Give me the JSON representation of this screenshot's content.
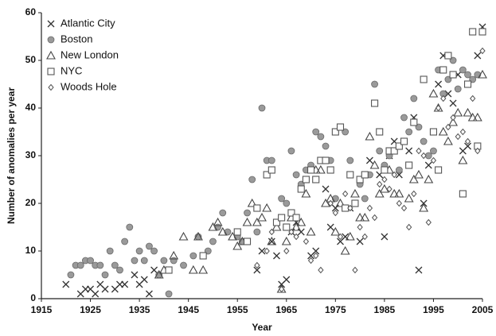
{
  "chart_data": {
    "type": "scatter",
    "xlabel": "Year",
    "ylabel": "Number of anomalies per year",
    "xlim": [
      1915,
      2005
    ],
    "xticks": [
      1915,
      1925,
      1935,
      1945,
      1955,
      1965,
      1975,
      1985,
      1995,
      2005
    ],
    "ylim": [
      0,
      60
    ],
    "yticks": [
      0,
      10,
      20,
      30,
      40,
      50,
      60
    ],
    "legend": "upper left",
    "series": [
      {
        "name": "Atlantic City",
        "marker": "x",
        "color": "#333333",
        "x": [
          1920,
          1923,
          1924,
          1925,
          1926,
          1927,
          1928,
          1930,
          1931,
          1932,
          1934,
          1935,
          1936,
          1937,
          1938,
          1959,
          1960,
          1962,
          1963,
          1964,
          1965,
          1966,
          1967,
          1968,
          1970,
          1971,
          1973,
          1974,
          1975,
          1976,
          1977,
          1978,
          1980,
          1982,
          1984,
          1985,
          1986,
          1987,
          1988,
          1990,
          1991,
          1992,
          1993,
          1994,
          1995,
          1996,
          1997,
          1998,
          1999,
          2000,
          2001,
          2002,
          2003,
          2004,
          2005
        ],
        "values": [
          3,
          1,
          2,
          2,
          1,
          3,
          2,
          2,
          3,
          3,
          5,
          3,
          4,
          1,
          6,
          6,
          10,
          12,
          9,
          3,
          4,
          14,
          16,
          14,
          9,
          10,
          23,
          15,
          19,
          12,
          13,
          19,
          12,
          29,
          26,
          13,
          30,
          33,
          26,
          31,
          38,
          6,
          20,
          28,
          35,
          45,
          51,
          43,
          41,
          47,
          31,
          32,
          56,
          51,
          57
        ]
      },
      {
        "name": "Boston",
        "marker": "circle",
        "color": "#9a9a9a",
        "x": [
          1921,
          1922,
          1923,
          1924,
          1925,
          1926,
          1927,
          1928,
          1929,
          1930,
          1931,
          1932,
          1933,
          1934,
          1935,
          1936,
          1937,
          1938,
          1939,
          1940,
          1941,
          1942,
          1944,
          1946,
          1947,
          1948,
          1949,
          1950,
          1951,
          1952,
          1953,
          1955,
          1956,
          1957,
          1958,
          1959,
          1960,
          1961,
          1962,
          1963,
          1964,
          1965,
          1966,
          1967,
          1968,
          1969,
          1970,
          1971,
          1972,
          1973,
          1974,
          1975,
          1976,
          1977,
          1978,
          1979,
          1980,
          1981,
          1982,
          1983,
          1984,
          1985,
          1986,
          1987,
          1988,
          1989,
          1990,
          1991,
          1992,
          1993,
          1994,
          1995,
          1996,
          1997,
          1998,
          1999,
          2000,
          2001,
          2002,
          2003,
          2004,
          2005
        ],
        "values": [
          5,
          7,
          7,
          8,
          8,
          7,
          7,
          5,
          10,
          7,
          6,
          12,
          15,
          8,
          10,
          8,
          11,
          10,
          5,
          8,
          1,
          8,
          7,
          9,
          13,
          9,
          10,
          12,
          15,
          18,
          14,
          13,
          12,
          18,
          25,
          14,
          40,
          29,
          29,
          16,
          21,
          20,
          31,
          26,
          24,
          27,
          28,
          35,
          34,
          32,
          29,
          21,
          36,
          35,
          29,
          20,
          24,
          21,
          26,
          45,
          31,
          28,
          30,
          31,
          27,
          38,
          35,
          42,
          36,
          33,
          30,
          31,
          48,
          43,
          46,
          50,
          44,
          48,
          47,
          46,
          47,
          56
        ]
      },
      {
        "name": "New London",
        "marker": "triangle",
        "color": "#444444",
        "x": [
          1939,
          1940,
          1942,
          1944,
          1946,
          1947,
          1948,
          1950,
          1951,
          1952,
          1954,
          1955,
          1956,
          1957,
          1958,
          1959,
          1960,
          1961,
          1962,
          1963,
          1964,
          1965,
          1966,
          1967,
          1968,
          1969,
          1970,
          1971,
          1972,
          1973,
          1974,
          1975,
          1976,
          1977,
          1978,
          1979,
          1980,
          1981,
          1982,
          1983,
          1984,
          1985,
          1986,
          1987,
          1988,
          1990,
          1991,
          1992,
          1993,
          1994,
          1995,
          1996,
          1997,
          1998,
          1999,
          2000,
          2001,
          2002,
          2003,
          2004,
          2005
        ],
        "values": [
          5,
          6,
          9,
          13,
          6,
          13,
          6,
          15,
          16,
          14,
          13,
          11,
          12,
          16,
          20,
          16,
          17,
          19,
          12,
          15,
          2,
          12,
          17,
          15,
          16,
          22,
          14,
          27,
          27,
          20,
          21,
          14,
          20,
          10,
          13,
          22,
          17,
          17,
          34,
          28,
          22,
          23,
          27,
          22,
          22,
          21,
          25,
          26,
          19,
          25,
          43,
          40,
          35,
          33,
          37,
          39,
          29,
          39,
          38,
          38,
          47
        ]
      },
      {
        "name": "NYC",
        "marker": "square",
        "color": "#555555",
        "x": [
          1941,
          1948,
          1955,
          1957,
          1959,
          1961,
          1962,
          1963,
          1964,
          1965,
          1966,
          1967,
          1968,
          1969,
          1970,
          1971,
          1972,
          1973,
          1974,
          1975,
          1976,
          1977,
          1978,
          1979,
          1980,
          1981,
          1983,
          1984,
          1985,
          1986,
          1987,
          1988,
          1989,
          1990,
          1991,
          1993,
          1995,
          1996,
          1997,
          1998,
          1999,
          2001,
          2002,
          2003,
          2004,
          2005
        ],
        "values": [
          6,
          9,
          14,
          12,
          19,
          26,
          27,
          16,
          17,
          15,
          18,
          17,
          23,
          25,
          27,
          25,
          29,
          29,
          27,
          35,
          36,
          19,
          26,
          20,
          25,
          26,
          41,
          35,
          27,
          31,
          31,
          32,
          33,
          28,
          37,
          46,
          35,
          27,
          48,
          51,
          47,
          22,
          45,
          56,
          32,
          56
        ]
      },
      {
        "name": "Woods Hole",
        "marker": "diamond",
        "color": "#555555",
        "x": [
          1959,
          1961,
          1962,
          1964,
          1965,
          1966,
          1967,
          1969,
          1970,
          1971,
          1972,
          1974,
          1975,
          1976,
          1977,
          1978,
          1979,
          1980,
          1981,
          1982,
          1983,
          1984,
          1985,
          1986,
          1987,
          1988,
          1989,
          1990,
          1991,
          1992,
          1993,
          1994,
          1995,
          1996,
          1997,
          1998,
          1999,
          2000,
          2001,
          2002,
          2003,
          2004,
          2005
        ],
        "values": [
          7,
          10,
          14,
          2,
          10,
          14,
          13,
          12,
          8,
          9,
          6,
          20,
          18,
          13,
          22,
          19,
          6,
          15,
          13,
          19,
          17,
          24,
          25,
          23,
          26,
          20,
          19,
          15,
          22,
          31,
          30,
          16,
          29,
          40,
          42,
          36,
          38,
          34,
          35,
          33,
          42,
          31,
          52
        ]
      }
    ]
  }
}
